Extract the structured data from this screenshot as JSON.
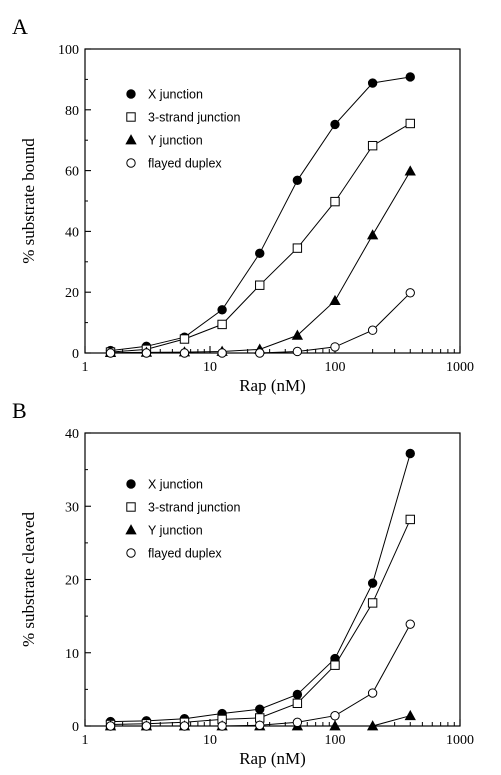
{
  "chart_data": [
    {
      "type": "line",
      "panel_label": "A",
      "xlabel": "Rap (nM)",
      "ylabel": "% substrate bound",
      "xscale": "log",
      "xlim": [
        1,
        1000
      ],
      "ylim": [
        0,
        100
      ],
      "xticks": [
        1,
        10,
        100,
        1000
      ],
      "xtick_labels": [
        "1",
        "10",
        "100",
        "1000"
      ],
      "yticks": [
        0,
        20,
        40,
        60,
        80,
        100
      ],
      "ytick_labels": [
        "0",
        "20",
        "40",
        "60",
        "80",
        "100"
      ],
      "grid": false,
      "legend_position": "top-left",
      "series": [
        {
          "name": "X junction",
          "marker": "filled-circle",
          "x": [
            1.6,
            3.1,
            6.25,
            12.5,
            25,
            50,
            100,
            200,
            400
          ],
          "y": [
            0.8,
            2.2,
            5.2,
            14.2,
            32.8,
            56.8,
            75.2,
            88.8,
            90.8
          ]
        },
        {
          "name": "3-strand junction",
          "marker": "open-square",
          "x": [
            1.6,
            3.1,
            6.25,
            12.5,
            25,
            50,
            100,
            200,
            400
          ],
          "y": [
            0.3,
            1.2,
            4.6,
            9.4,
            22.3,
            34.5,
            49.8,
            68.2,
            75.5
          ]
        },
        {
          "name": "Y junction",
          "marker": "filled-triangle",
          "x": [
            1.6,
            3.1,
            6.25,
            12.5,
            25,
            50,
            100,
            200,
            400
          ],
          "y": [
            0.1,
            0.2,
            0.3,
            0.5,
            1.2,
            5.8,
            17.2,
            38.8,
            59.8
          ]
        },
        {
          "name": "flayed duplex",
          "marker": "open-circle",
          "x": [
            1.6,
            3.1,
            6.25,
            12.5,
            25,
            50,
            100,
            200,
            400
          ],
          "y": [
            0,
            0,
            0,
            0,
            0,
            0.5,
            2.0,
            7.5,
            19.8
          ]
        }
      ]
    },
    {
      "type": "line",
      "panel_label": "B",
      "xlabel": "Rap (nM)",
      "ylabel": "% substrate cleaved",
      "xscale": "log",
      "xlim": [
        1,
        1000
      ],
      "ylim": [
        0,
        40
      ],
      "xticks": [
        1,
        10,
        100,
        1000
      ],
      "xtick_labels": [
        "1",
        "10",
        "100",
        "1000"
      ],
      "yticks": [
        0,
        10,
        20,
        30,
        40
      ],
      "ytick_labels": [
        "0",
        "10",
        "20",
        "30",
        "40"
      ],
      "grid": false,
      "legend_position": "top-left",
      "series": [
        {
          "name": "X junction",
          "marker": "filled-circle",
          "x": [
            1.6,
            3.1,
            6.25,
            12.5,
            25,
            50,
            100,
            200,
            400
          ],
          "y": [
            0.6,
            0.7,
            1.0,
            1.7,
            2.3,
            4.3,
            9.2,
            19.5,
            37.2
          ]
        },
        {
          "name": "3-strand junction",
          "marker": "open-square",
          "x": [
            1.6,
            3.1,
            6.25,
            12.5,
            25,
            50,
            100,
            200,
            400
          ],
          "y": [
            0.2,
            0.3,
            0.5,
            0.9,
            1.1,
            3.1,
            8.3,
            16.8,
            28.2
          ]
        },
        {
          "name": "Y junction",
          "marker": "filled-triangle",
          "x": [
            1.6,
            3.1,
            6.25,
            12.5,
            25,
            50,
            100,
            200,
            400
          ],
          "y": [
            0,
            0,
            0,
            0,
            0,
            0,
            0,
            0,
            1.4
          ]
        },
        {
          "name": "flayed duplex",
          "marker": "open-circle",
          "x": [
            1.6,
            3.1,
            6.25,
            12.5,
            25,
            50,
            100,
            200,
            400
          ],
          "y": [
            0,
            0,
            0,
            0,
            0.1,
            0.5,
            1.4,
            4.5,
            13.9
          ]
        }
      ]
    }
  ]
}
